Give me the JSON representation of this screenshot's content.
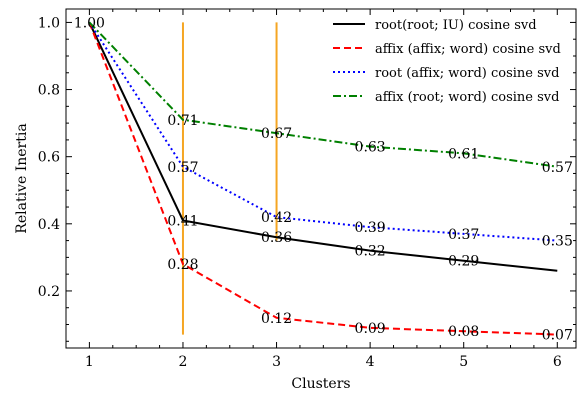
{
  "chart_data": {
    "type": "line",
    "xlabel": "Clusters",
    "ylabel": "Relative Inertia",
    "x": [
      1,
      2,
      3,
      4,
      5,
      6
    ],
    "xlim": [
      0.75,
      6.2
    ],
    "ylim": [
      0.03,
      1.04
    ],
    "xticks": [
      1,
      2,
      3,
      4,
      5,
      6
    ],
    "yticks": [
      0.2,
      0.4,
      0.6,
      0.8,
      1.0
    ],
    "ytick_labels": [
      "0.2",
      "0.4",
      "0.6",
      "0.8",
      "1.0"
    ],
    "grid": false,
    "legend_position": "top-right",
    "series": [
      {
        "name": "root(root; IU) cosine svd",
        "values": [
          1.0,
          0.41,
          0.36,
          0.32,
          0.29,
          0.26
        ],
        "labels": [
          "1.00",
          "0.41",
          "0.36",
          "0.32",
          "0.29",
          ""
        ],
        "color": "#000000",
        "dash": "solid"
      },
      {
        "name": "affix (affix; word) cosine svd",
        "values": [
          1.0,
          0.28,
          0.12,
          0.09,
          0.08,
          0.07
        ],
        "labels": [
          "",
          "0.28",
          "0.12",
          "0.09",
          "0.08",
          "0.07"
        ],
        "color": "#ff0000",
        "dash": "dashed"
      },
      {
        "name": "root (affix; word) cosine svd",
        "values": [
          1.0,
          0.57,
          0.42,
          0.39,
          0.37,
          0.35
        ],
        "labels": [
          "",
          "0.57",
          "0.42",
          "0.39",
          "0.37",
          "0.35"
        ],
        "color": "#0000ff",
        "dash": "dotted"
      },
      {
        "name": "affix (root; word) cosine svd",
        "values": [
          1.0,
          0.71,
          0.67,
          0.63,
          0.61,
          0.57
        ],
        "labels": [
          "",
          "0.71",
          "0.67",
          "0.63",
          "0.61",
          "0.57"
        ],
        "color": "#008000",
        "dash": "dashdot"
      }
    ],
    "vertical_lines": [
      {
        "x": 2,
        "y_range": [
          0.07,
          1.0
        ],
        "color": "#f5a623"
      },
      {
        "x": 3,
        "y_range": [
          0.35,
          1.0
        ],
        "color": "#f5a623"
      }
    ]
  }
}
